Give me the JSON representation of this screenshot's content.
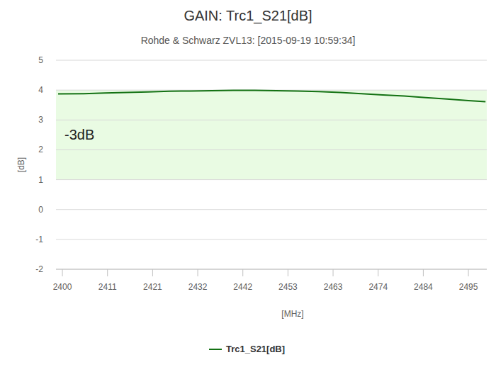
{
  "chart_data": {
    "type": "line",
    "title": "GAIN: Trc1_S21[dB]",
    "subtitle": "Rohde & Schwarz ZVL13: [2015-09-19 10:59:34]",
    "x_label": "[MHz]",
    "y_label": "[dB]",
    "x": [
      2399,
      2405,
      2410,
      2415,
      2420,
      2425,
      2430,
      2435,
      2440,
      2445,
      2450,
      2455,
      2460,
      2465,
      2470,
      2475,
      2480,
      2485,
      2490,
      2495,
      2499
    ],
    "series": [
      {
        "name": "Trc1_S21[dB]",
        "color": "#137113",
        "values": [
          3.87,
          3.88,
          3.9,
          3.92,
          3.94,
          3.96,
          3.97,
          3.98,
          3.99,
          3.99,
          3.98,
          3.97,
          3.95,
          3.92,
          3.88,
          3.84,
          3.8,
          3.75,
          3.7,
          3.65,
          3.61
        ]
      }
    ],
    "xlim": [
      2398.5,
      2499.3
    ],
    "xticks": [
      {
        "value": 2400,
        "label": "2400"
      },
      {
        "value": 2410.556,
        "label": "2411"
      },
      {
        "value": 2421.111,
        "label": "2421"
      },
      {
        "value": 2431.667,
        "label": "2432"
      },
      {
        "value": 2442.222,
        "label": "2442"
      },
      {
        "value": 2452.778,
        "label": "2453"
      },
      {
        "value": 2463.333,
        "label": "2463"
      },
      {
        "value": 2473.889,
        "label": "2474"
      },
      {
        "value": 2484.444,
        "label": "2484"
      },
      {
        "value": 2495,
        "label": "2495"
      }
    ],
    "ylim": [
      -2,
      5
    ],
    "yticks": [
      -2,
      -1,
      0,
      1,
      2,
      3,
      4,
      5
    ],
    "annotations": [
      {
        "text": "-3dB",
        "band": [
          1,
          4
        ],
        "color": "#e9fbe3"
      }
    ],
    "grid": true,
    "legend": "bottom"
  }
}
